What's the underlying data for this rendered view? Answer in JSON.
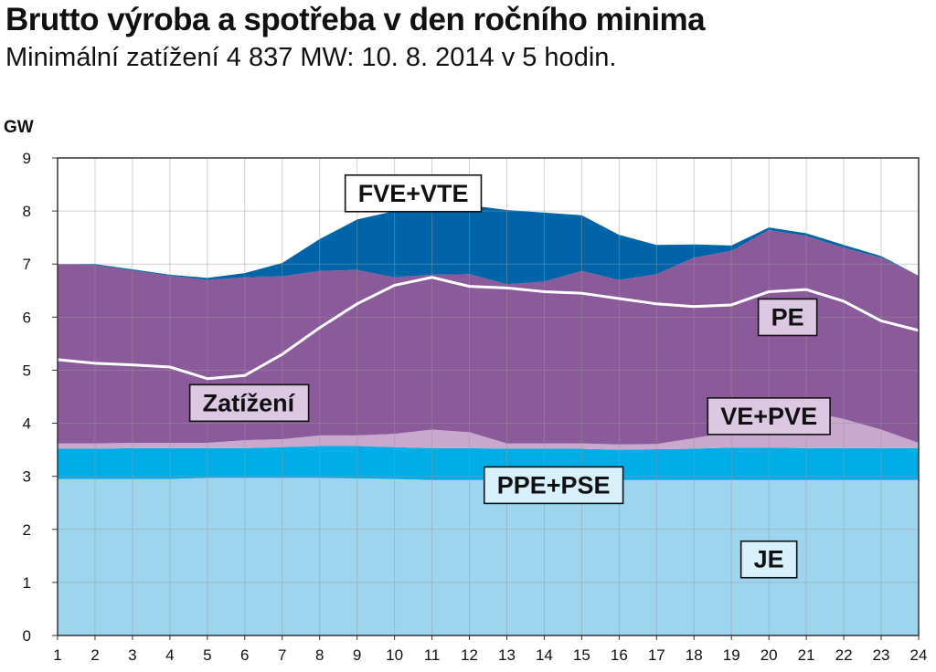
{
  "title": "Brutto výroba a spotřeba v den ročního minima",
  "subtitle": "Minimální zatížení 4 837 MW: 10. 8. 2014 v 5 hodin.",
  "chart_data": {
    "type": "area",
    "ylabel": "GW",
    "ylim": [
      0,
      9
    ],
    "yticks": [
      0,
      1,
      2,
      3,
      4,
      5,
      6,
      7,
      8,
      9
    ],
    "x": [
      1,
      2,
      3,
      4,
      5,
      6,
      7,
      8,
      9,
      10,
      11,
      12,
      13,
      14,
      15,
      16,
      17,
      18,
      19,
      20,
      21,
      22,
      23,
      24
    ],
    "grid": true,
    "stacked": true,
    "series": [
      {
        "name": "JE",
        "color": "#9dd5ef",
        "values": [
          2.95,
          2.95,
          2.95,
          2.95,
          2.97,
          2.97,
          2.97,
          2.97,
          2.96,
          2.95,
          2.93,
          2.93,
          2.93,
          2.93,
          2.93,
          2.93,
          2.93,
          2.93,
          2.93,
          2.93,
          2.93,
          2.93,
          2.93,
          2.93
        ]
      },
      {
        "name": "PPE+PSE",
        "color": "#00ade6",
        "values": [
          0.57,
          0.57,
          0.58,
          0.58,
          0.56,
          0.56,
          0.58,
          0.6,
          0.61,
          0.6,
          0.6,
          0.6,
          0.59,
          0.59,
          0.59,
          0.57,
          0.58,
          0.59,
          0.61,
          0.61,
          0.6,
          0.6,
          0.6,
          0.6
        ]
      },
      {
        "name": "VE+PVE",
        "color": "#c8a8cd",
        "values": [
          0.1,
          0.1,
          0.1,
          0.1,
          0.1,
          0.15,
          0.15,
          0.2,
          0.2,
          0.25,
          0.35,
          0.3,
          0.1,
          0.1,
          0.1,
          0.1,
          0.1,
          0.2,
          0.3,
          0.55,
          0.7,
          0.55,
          0.35,
          0.1
        ]
      },
      {
        "name": "PE",
        "color": "#8a5a9a",
        "values": [
          3.38,
          3.36,
          3.25,
          3.15,
          3.07,
          3.07,
          3.07,
          3.1,
          3.12,
          2.95,
          2.92,
          2.98,
          3.0,
          3.05,
          3.25,
          3.1,
          3.2,
          3.4,
          3.41,
          3.55,
          3.3,
          3.23,
          3.24,
          3.15
        ]
      },
      {
        "name": "FVE+VTE",
        "color": "#0065a8",
        "values": [
          0.0,
          0.02,
          0.02,
          0.02,
          0.04,
          0.08,
          0.25,
          0.6,
          0.95,
          1.25,
          1.35,
          1.3,
          1.4,
          1.3,
          1.05,
          0.85,
          0.55,
          0.25,
          0.1,
          0.05,
          0.05,
          0.05,
          0.03,
          0.0
        ]
      }
    ],
    "line": {
      "name": "Zatížení",
      "color": "#ffffff",
      "values": [
        5.2,
        5.13,
        5.1,
        5.06,
        4.84,
        4.9,
        5.3,
        5.8,
        6.25,
        6.6,
        6.75,
        6.58,
        6.55,
        6.48,
        6.45,
        6.35,
        6.25,
        6.2,
        6.23,
        6.48,
        6.52,
        6.3,
        5.93,
        5.75
      ]
    },
    "annotations": [
      {
        "text": "FVE+VTE",
        "series": "FVE+VTE",
        "fill": "#ffffff"
      },
      {
        "text": "Zatížení",
        "series": "Zatížení",
        "fill": "#dcc8e2"
      },
      {
        "text": "PE",
        "series": "PE",
        "fill": "#dcc8e2"
      },
      {
        "text": "VE+PVE",
        "series": "VE+PVE",
        "fill": "#dcc8e2"
      },
      {
        "text": "PPE+PSE",
        "series": "PPE+PSE",
        "fill": "#d8f0fb"
      },
      {
        "text": "JE",
        "series": "JE",
        "fill": "#d8f0fb"
      }
    ]
  }
}
